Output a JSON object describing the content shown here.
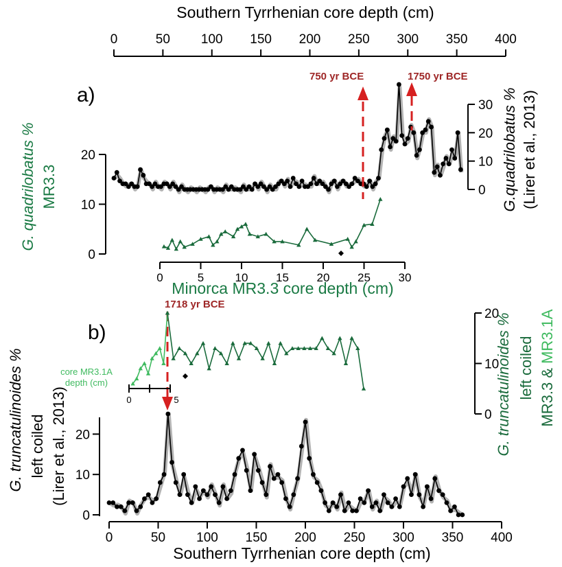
{
  "chart_data": [
    {
      "panel_label": "a)",
      "type": "line",
      "title": "",
      "top_axis": {
        "label": "Southern Tyrrhenian core depth (cm)",
        "ticks": [
          "0",
          "50",
          "100",
          "150",
          "200",
          "250",
          "300",
          "350",
          "400"
        ],
        "range": [
          0,
          400
        ]
      },
      "right_axis": {
        "label_line1": "G.quadrilobatus %",
        "label_line2": "(Lirer et al., 2013)",
        "ticks": [
          "0",
          "10",
          "20",
          "30"
        ],
        "range": [
          0,
          30
        ]
      },
      "left_axis": {
        "label_line1": "G. quadrilobatus %",
        "label_line2": "MR3.3",
        "ticks": [
          "0",
          "10",
          "20"
        ],
        "range": [
          0,
          20
        ]
      },
      "bottom_axis": {
        "label": "Minorca MR3.3 core depth (cm)",
        "ticks": [
          "0",
          "5",
          "10",
          "15",
          "20",
          "25",
          "30"
        ],
        "range": [
          0,
          30
        ]
      },
      "annotations": [
        "750 yr BCE",
        "1750 yr BCE"
      ],
      "series": [
        {
          "role": "Southern Tyrrhenian (black points, grey smoothed band)",
          "x": [
            0,
            3,
            6,
            9,
            12,
            15,
            18,
            21,
            24,
            27,
            30,
            33,
            36,
            39,
            42,
            45,
            48,
            51,
            54,
            57,
            60,
            63,
            66,
            69,
            72,
            75,
            78,
            81,
            84,
            87,
            90,
            93,
            96,
            99,
            102,
            105,
            108,
            111,
            114,
            117,
            120,
            123,
            126,
            129,
            132,
            135,
            138,
            141,
            144,
            147,
            150,
            153,
            156,
            159,
            162,
            165,
            168,
            171,
            174,
            177,
            180,
            183,
            186,
            189,
            192,
            195,
            198,
            201,
            204,
            207,
            210,
            213,
            216,
            219,
            222,
            225,
            228,
            231,
            234,
            237,
            240,
            243,
            246,
            249,
            252,
            255,
            258,
            261,
            264,
            267,
            270,
            273,
            276,
            279,
            282,
            285,
            288,
            291,
            294,
            297,
            300,
            303,
            306,
            309,
            312,
            315,
            318,
            321,
            324,
            327,
            330,
            333,
            336,
            339,
            342,
            345,
            348,
            351,
            354
          ],
          "y": [
            4,
            6,
            3,
            2,
            2,
            1,
            2,
            1,
            1,
            7,
            5,
            2,
            2,
            1,
            2,
            1,
            1,
            2,
            2,
            1,
            2,
            1,
            0,
            1,
            0,
            0,
            0,
            0,
            0,
            0,
            0,
            0,
            0,
            1,
            0,
            0,
            0,
            0,
            1,
            0,
            1,
            0,
            0,
            0,
            1,
            0,
            1,
            0,
            2,
            1,
            2,
            1,
            0,
            1,
            0,
            1,
            2,
            3,
            2,
            3,
            1,
            4,
            2,
            1,
            3,
            1,
            1,
            2,
            4,
            2,
            3,
            2,
            1,
            0,
            2,
            3,
            1,
            2,
            3,
            2,
            1,
            2,
            4,
            3,
            2,
            2,
            1,
            3,
            1,
            2,
            4,
            14,
            18,
            21,
            15,
            18,
            17,
            37,
            19,
            16,
            18,
            22,
            20,
            12,
            14,
            20,
            21,
            24,
            22,
            6,
            8,
            5,
            9,
            11,
            9,
            14,
            11,
            20,
            7
          ]
        },
        {
          "role": "Minorca MR3.3 (green triangles)",
          "x": [
            0.5,
            1,
            1.5,
            2,
            2.5,
            3,
            4,
            5,
            6,
            6.5,
            7,
            7.5,
            8,
            9,
            9.5,
            10,
            10.5,
            11,
            12,
            13,
            14,
            15,
            17,
            18,
            19,
            21,
            23,
            23.5,
            24,
            25,
            26,
            27
          ],
          "y": [
            1.5,
            1.2,
            2.8,
            1,
            2.5,
            1.4,
            2,
            3,
            3.5,
            1.8,
            2.5,
            4,
            4.5,
            3.5,
            5,
            5.5,
            6,
            4,
            3.5,
            4,
            2.5,
            2.5,
            1.8,
            5,
            2.8,
            2,
            3,
            1.4,
            2.5,
            5.8,
            6,
            11
          ]
        }
      ]
    },
    {
      "panel_label": "b)",
      "type": "line",
      "title": "",
      "bottom_axis": {
        "label": "Southern Tyrrhenian core depth (cm)",
        "ticks": [
          "0",
          "50",
          "100",
          "150",
          "200",
          "250",
          "300",
          "350",
          "400"
        ],
        "range": [
          0,
          400
        ]
      },
      "left_axis": {
        "label_line1": "G. truncatulinoides %",
        "label_line2": "left coiled",
        "label_line3": "(Lirer et al., 2013)",
        "ticks": [
          "0",
          "10",
          "20"
        ],
        "range": [
          0,
          25
        ]
      },
      "right_axis": {
        "label_line1": "G. truncatulinoides %",
        "label_line2": "left coiled",
        "label_line3_a": "MR3.3 & ",
        "label_line3_b": "MR3.1A",
        "ticks": [
          "0",
          "10",
          "20"
        ],
        "range": [
          0,
          20
        ]
      },
      "inset_axis": {
        "label_line1": "core MR3.1A",
        "label_line2": "depth (cm)",
        "ticks": [
          "0",
          "5"
        ]
      },
      "annotations": [
        "1718 yr BCE"
      ],
      "series": [
        {
          "role": "Southern Tyrrhenian (black points, grey smoothed band)",
          "x": [
            0,
            4,
            8,
            12,
            16,
            20,
            24,
            28,
            32,
            36,
            40,
            44,
            48,
            52,
            56,
            60,
            64,
            68,
            72,
            76,
            80,
            84,
            88,
            92,
            96,
            100,
            104,
            108,
            112,
            116,
            120,
            124,
            128,
            132,
            136,
            140,
            144,
            148,
            152,
            156,
            160,
            164,
            168,
            172,
            176,
            180,
            184,
            188,
            192,
            196,
            200,
            204,
            208,
            212,
            216,
            220,
            224,
            228,
            232,
            236,
            240,
            244,
            248,
            252,
            256,
            260,
            264,
            268,
            272,
            276,
            280,
            284,
            288,
            292,
            296,
            300,
            304,
            308,
            312,
            316,
            320,
            324,
            328,
            332,
            336,
            340,
            344,
            348,
            352,
            356,
            360
          ],
          "y": [
            3,
            3,
            2,
            2,
            1,
            3,
            3,
            1,
            2,
            4,
            5,
            3,
            4,
            8,
            10,
            25,
            13,
            8,
            5,
            10,
            5,
            3,
            7,
            4,
            6,
            5,
            7,
            5,
            3,
            7,
            4,
            6,
            10,
            14,
            16,
            11,
            6,
            15,
            11,
            8,
            5,
            12,
            9,
            10,
            8,
            4,
            2,
            5,
            9,
            17,
            23,
            14,
            10,
            8,
            6,
            3,
            1,
            3,
            2,
            5,
            1,
            3,
            1,
            1,
            4,
            3,
            6,
            2,
            3,
            1,
            5,
            3,
            2,
            4,
            2,
            7,
            9,
            5,
            10,
            5,
            2,
            7,
            4,
            9,
            6,
            5,
            3,
            1,
            2,
            0,
            0
          ]
        },
        {
          "role": "MR3.1A (light green triangles)",
          "x": [
            0.5,
            1,
            1.5,
            2,
            2.5,
            3,
            3.5,
            4,
            4.5,
            5
          ],
          "y": [
            6,
            7,
            9,
            10,
            8,
            11,
            12,
            13,
            10,
            20
          ]
        },
        {
          "role": "MR3.3 (dark green triangles)",
          "x": [
            5,
            7,
            9,
            11,
            13,
            15,
            17,
            19,
            21,
            23,
            25,
            27,
            29,
            31,
            33,
            35,
            37,
            39,
            41,
            43,
            45,
            47,
            49,
            51,
            53,
            55,
            57,
            59,
            61,
            63,
            65,
            67,
            69,
            71
          ],
          "y": [
            20,
            11,
            13,
            12,
            10,
            12,
            14,
            9,
            13,
            12,
            10,
            14,
            11,
            14,
            14,
            13,
            11,
            14,
            10,
            14,
            12,
            13,
            13,
            13,
            13,
            13,
            15,
            13,
            12,
            15,
            10,
            15,
            13,
            5
          ]
        }
      ]
    }
  ]
}
